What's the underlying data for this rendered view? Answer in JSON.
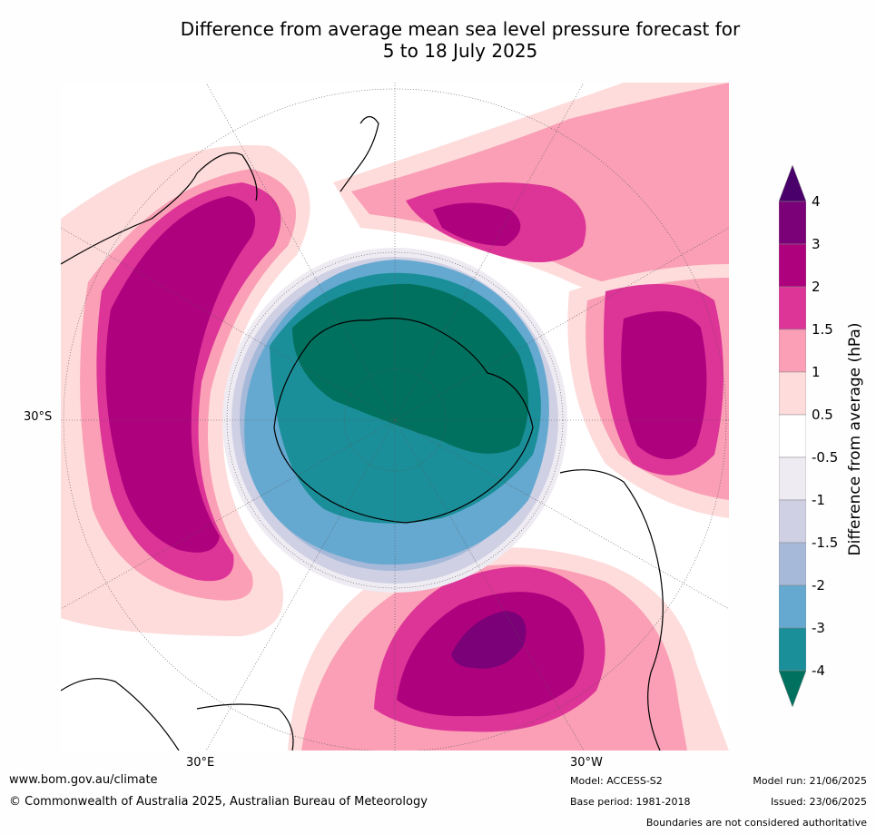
{
  "title": {
    "line1": "Difference from average mean sea level pressure forecast for",
    "line2": "5 to 18 July 2025"
  },
  "map": {
    "lat_label": "30°S",
    "lon_labels": [
      "30°E",
      "30°W"
    ],
    "colors": {
      "lt4": "#01715f",
      "m4_m3": "#1b8f99",
      "m3_m2": "#65a9d0",
      "m2_m15": "#a7b9d9",
      "m15_m1": "#cfd0e4",
      "m1_m05": "#efebf2",
      "m05_05": "#ffffff",
      "p05_1": "#fddcdb",
      "p1_15": "#fa9fb5",
      "p15_2": "#dd3497",
      "p2_3": "#ae017e",
      "p3_4": "#7a0177",
      "gt4": "#49006a"
    }
  },
  "colorbar": {
    "title": "Difference from average (hPa)",
    "ticks": [
      "4",
      "3",
      "2",
      "1.5",
      "1",
      "0.5",
      "-0.5",
      "-1",
      "-1.5",
      "-2",
      "-3",
      "-4"
    ],
    "colors": [
      "#7a0177",
      "#ae017e",
      "#dd3497",
      "#fa9fb5",
      "#fddcdb",
      "#ffffff",
      "#efebf2",
      "#cfd0e4",
      "#a7b9d9",
      "#65a9d0",
      "#1b8f99"
    ],
    "over_color": "#49006a",
    "under_color": "#01715f"
  },
  "footer": {
    "url": "www.bom.gov.au/climate",
    "copyright": "© Commonwealth of Australia 2025, Australian Bureau of Meteorology",
    "model": "Model: ACCESS-S2",
    "base_period": "Base period: 1981-2018",
    "model_run": "Model run: 21/06/2025",
    "issued": "Issued: 23/06/2025",
    "disclaimer": "Boundaries are not considered authoritative"
  }
}
